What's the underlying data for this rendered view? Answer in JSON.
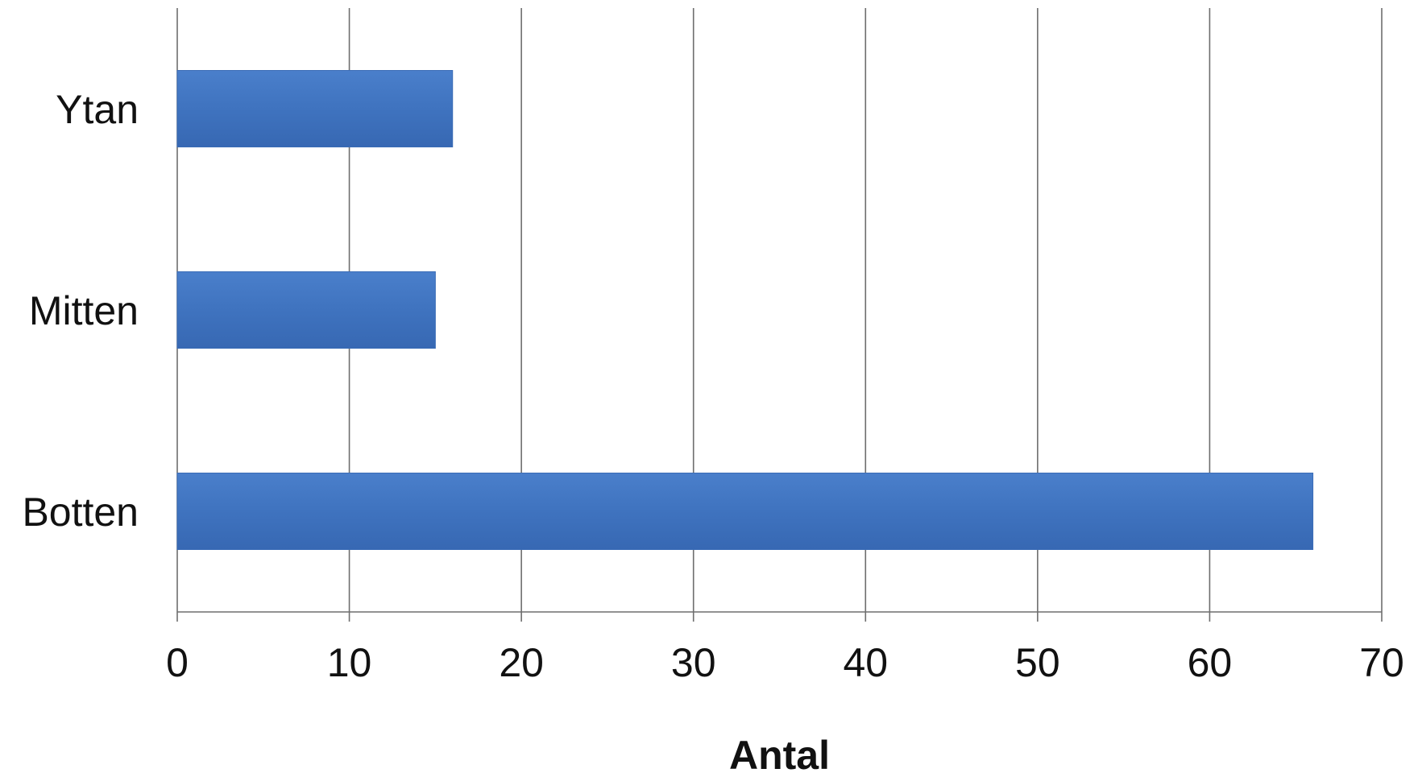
{
  "chart_data": {
    "type": "bar",
    "orientation": "horizontal",
    "title": "",
    "xlabel": "Antal",
    "ylabel": "",
    "categories": [
      "Ytan",
      "Mitten",
      "Botten"
    ],
    "values": [
      16,
      15,
      66
    ],
    "xlim": [
      0,
      70
    ],
    "x_ticks": [
      0,
      10,
      20,
      30,
      40,
      50,
      60,
      70
    ],
    "grid": true,
    "legend": "none",
    "bar_color": "#3f73bf"
  }
}
